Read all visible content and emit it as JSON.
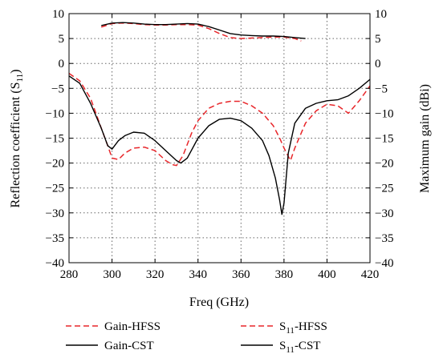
{
  "chart_data": {
    "type": "line",
    "xlabel": "Freq (GHz)",
    "ylabel_left_main": "Reflection coefficient (S",
    "ylabel_left_sub": "11",
    "ylabel_left_tail": ")",
    "ylabel_right": "Maximum gain (dBi)",
    "xlim": [
      280,
      420
    ],
    "ylim": [
      -40,
      10
    ],
    "x_ticks": [
      "280",
      "300",
      "320",
      "340",
      "360",
      "380",
      "400",
      "420"
    ],
    "y_ticks": [
      "10",
      "5",
      "0",
      "−5",
      "−10",
      "−15",
      "−20",
      "−25",
      "−30",
      "−35",
      "−40"
    ],
    "grid": true,
    "legend_position": "bottom",
    "series": [
      {
        "name": "Gain-HFSS",
        "legend_main": "Gain-HFSS",
        "legend_sub": "",
        "legend_tail": "",
        "axis": "right",
        "color": "#e8262a",
        "dash": true,
        "x": [
          295,
          300,
          305,
          310,
          315,
          320,
          325,
          330,
          335,
          340,
          345,
          350,
          355,
          360,
          365,
          370,
          375,
          380,
          385,
          388
        ],
        "y": [
          7.3,
          8.0,
          8.1,
          8.0,
          7.8,
          7.7,
          7.7,
          7.8,
          7.8,
          7.7,
          7.0,
          6.0,
          5.2,
          5.0,
          5.1,
          5.2,
          5.3,
          5.3,
          5.0,
          4.5
        ]
      },
      {
        "name": "Gain-CST",
        "legend_main": "Gain-CST",
        "legend_sub": "",
        "legend_tail": "",
        "axis": "right",
        "color": "#000000",
        "dash": false,
        "x": [
          295,
          300,
          305,
          310,
          315,
          320,
          325,
          330,
          335,
          340,
          345,
          350,
          355,
          360,
          365,
          370,
          375,
          380,
          385,
          390
        ],
        "y": [
          7.6,
          8.1,
          8.2,
          8.1,
          7.9,
          7.8,
          7.8,
          7.9,
          8.0,
          7.9,
          7.4,
          6.7,
          6.0,
          5.7,
          5.6,
          5.5,
          5.5,
          5.4,
          5.2,
          5.0
        ]
      },
      {
        "name": "S11-HFSS",
        "legend_main": "S",
        "legend_sub": "11",
        "legend_tail": "-HFSS",
        "axis": "left",
        "color": "#e8262a",
        "dash": true,
        "x": [
          280,
          285,
          290,
          295,
          298,
          300,
          303,
          306,
          310,
          315,
          320,
          325,
          328,
          330,
          333,
          337,
          340,
          345,
          350,
          355,
          360,
          365,
          370,
          375,
          378,
          380,
          383,
          385,
          390,
          395,
          400,
          405,
          410,
          415,
          420
        ],
        "y": [
          -2,
          -3.5,
          -7,
          -13,
          -16.5,
          -19,
          -19.3,
          -18,
          -17,
          -16.8,
          -17.5,
          -19.5,
          -20.3,
          -20.5,
          -18.5,
          -14,
          -11.5,
          -9,
          -8,
          -7.6,
          -7.6,
          -8.5,
          -10,
          -12.5,
          -15,
          -17,
          -19.5,
          -17,
          -12,
          -9.5,
          -8.2,
          -8.5,
          -10,
          -7.5,
          -4.5
        ]
      },
      {
        "name": "S11-CST",
        "legend_main": "S",
        "legend_sub": "11",
        "legend_tail": "-CST",
        "axis": "left",
        "color": "#000000",
        "dash": false,
        "x": [
          280,
          285,
          290,
          295,
          298,
          300,
          303,
          306,
          310,
          315,
          320,
          325,
          330,
          332,
          335,
          340,
          345,
          350,
          355,
          360,
          365,
          370,
          373,
          376,
          378,
          379,
          380,
          382,
          385,
          390,
          395,
          400,
          405,
          410,
          415,
          420
        ],
        "y": [
          -2.5,
          -4,
          -8,
          -13,
          -16.5,
          -17.2,
          -15.5,
          -14.5,
          -13.8,
          -14,
          -15.5,
          -17.5,
          -19.5,
          -20,
          -19,
          -15,
          -12.5,
          -11.2,
          -11,
          -11.5,
          -13,
          -15.5,
          -18.5,
          -23,
          -27.5,
          -30.3,
          -28,
          -18,
          -12,
          -9,
          -8,
          -7.5,
          -7.3,
          -6.5,
          -5,
          -3.2
        ]
      }
    ]
  }
}
